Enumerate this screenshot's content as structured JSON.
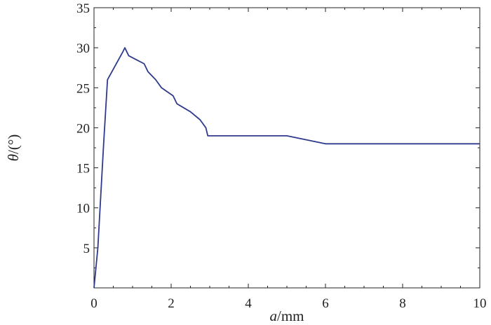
{
  "chart_data": {
    "type": "line",
    "xlabel_italic": "a",
    "xlabel_rest": "/mm",
    "ylabel_italic": "θ",
    "ylabel_rest": "/(°)",
    "xlim": [
      0,
      10
    ],
    "ylim": [
      0,
      35
    ],
    "x_ticks": [
      0,
      2,
      4,
      6,
      8,
      10
    ],
    "y_ticks": [
      5,
      10,
      15,
      20,
      25,
      30,
      35
    ],
    "x_tick_labels": [
      "0",
      "2",
      "4",
      "6",
      "8",
      "10"
    ],
    "y_tick_labels": [
      "5",
      "10",
      "15",
      "20",
      "25",
      "30",
      "35"
    ],
    "grid": false,
    "line_color": "#2e3a8c",
    "series": [
      {
        "x": [
          0,
          0.1,
          0.25,
          0.35,
          0.75,
          0.8,
          0.9,
          1.1,
          1.3,
          1.4,
          1.6,
          1.75,
          2.05,
          2.15,
          2.5,
          2.75,
          2.9,
          2.95,
          3.0,
          5.0,
          6.0,
          10.0
        ],
        "y": [
          0,
          5,
          18,
          26,
          29.5,
          30,
          29,
          28.5,
          28,
          27,
          26,
          25,
          24,
          23,
          22,
          21,
          20,
          19,
          19,
          19,
          18,
          18
        ]
      }
    ]
  }
}
